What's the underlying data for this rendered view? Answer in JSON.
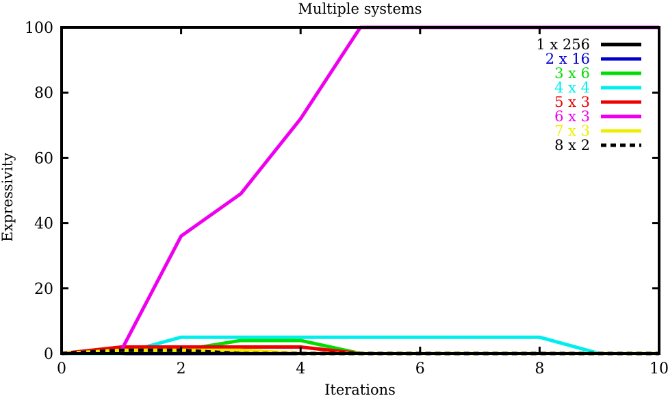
{
  "chart_data": {
    "type": "line",
    "title": "Multiple systems",
    "xlabel": "Iterations",
    "ylabel": "Expressivity",
    "xlim": [
      0,
      10
    ],
    "ylim": [
      0,
      100
    ],
    "x_ticks": [
      0,
      2,
      4,
      6,
      8,
      10
    ],
    "y_ticks": [
      0,
      20,
      40,
      60,
      80,
      100
    ],
    "grid": false,
    "legend_position": "top-right",
    "x": [
      0,
      1,
      2,
      3,
      4,
      5,
      6,
      7,
      8,
      9,
      10
    ],
    "series": [
      {
        "name": "1 x 256",
        "color": "#000000",
        "dash": "solid",
        "values": [
          0,
          0,
          0,
          0,
          0,
          0,
          0,
          0,
          0,
          0,
          0
        ]
      },
      {
        "name": "2 x 16",
        "color": "#0000cc",
        "dash": "solid",
        "values": [
          0,
          0,
          0,
          0,
          0,
          0,
          0,
          0,
          0,
          0,
          0
        ]
      },
      {
        "name": "3 x 6",
        "color": "#00dd00",
        "dash": "solid",
        "values": [
          0,
          0,
          1,
          4,
          4,
          0,
          0,
          0,
          0,
          0,
          0
        ]
      },
      {
        "name": "4 x 4",
        "color": "#00eeee",
        "dash": "solid",
        "values": [
          0,
          0,
          5,
          5,
          5,
          5,
          5,
          5,
          5,
          0,
          0
        ]
      },
      {
        "name": "5 x 3",
        "color": "#ee0000",
        "dash": "solid",
        "values": [
          0,
          2,
          2,
          2,
          2,
          0,
          0,
          0,
          0,
          0,
          0
        ]
      },
      {
        "name": "6 x 3",
        "color": "#ee00ee",
        "dash": "solid",
        "values": [
          0,
          1,
          36,
          49,
          72,
          100,
          100,
          100,
          100,
          100,
          100
        ]
      },
      {
        "name": "7 x 3",
        "color": "#eeee00",
        "dash": "solid",
        "values": [
          0,
          1,
          1,
          1,
          0,
          0,
          0,
          0,
          0,
          0,
          0
        ]
      },
      {
        "name": "8 x 2",
        "color": "#000000",
        "dash": "dotted",
        "values": [
          0,
          1,
          1,
          0,
          0,
          0,
          0,
          0,
          0,
          0,
          0
        ]
      }
    ]
  }
}
